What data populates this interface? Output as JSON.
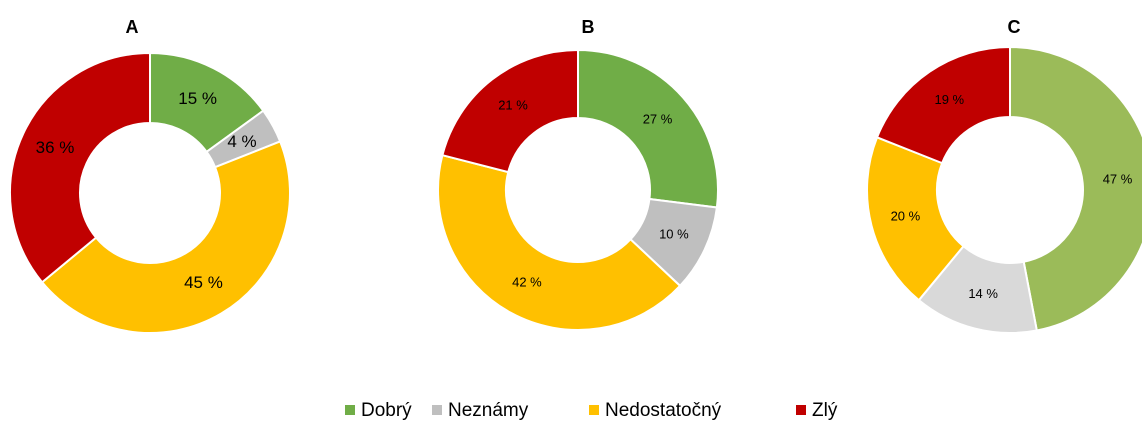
{
  "chart_data": [
    {
      "type": "donut",
      "title": "A",
      "categories": [
        "Dobrý",
        "Neznámy",
        "Nedostatočný",
        "Zlý"
      ],
      "values": [
        15,
        4,
        45,
        36
      ],
      "value_labels": [
        "15 %",
        "4 %",
        "45 %",
        "36 %"
      ],
      "colors": [
        "#70ad47",
        "#bfbfbf",
        "#ffc000",
        "#c00000"
      ]
    },
    {
      "type": "donut",
      "title": "B",
      "categories": [
        "Dobrý",
        "Neznámy",
        "Nedostatočný",
        "Zlý"
      ],
      "values": [
        27,
        10,
        42,
        21
      ],
      "value_labels": [
        "27 %",
        "10 %",
        "42 %",
        "21 %"
      ],
      "colors": [
        "#70ad47",
        "#bfbfbf",
        "#ffc000",
        "#c00000"
      ]
    },
    {
      "type": "donut",
      "title": "C",
      "categories": [
        "Dobrý",
        "Neznámy",
        "Nedostatočný",
        "Zlý"
      ],
      "values": [
        47,
        14,
        20,
        19
      ],
      "value_labels": [
        "47 %",
        "14 %",
        "20 %",
        "19 %"
      ],
      "colors": [
        "#9bbb59",
        "#d9d9d9",
        "#ffc000",
        "#c00000"
      ]
    }
  ]
}
